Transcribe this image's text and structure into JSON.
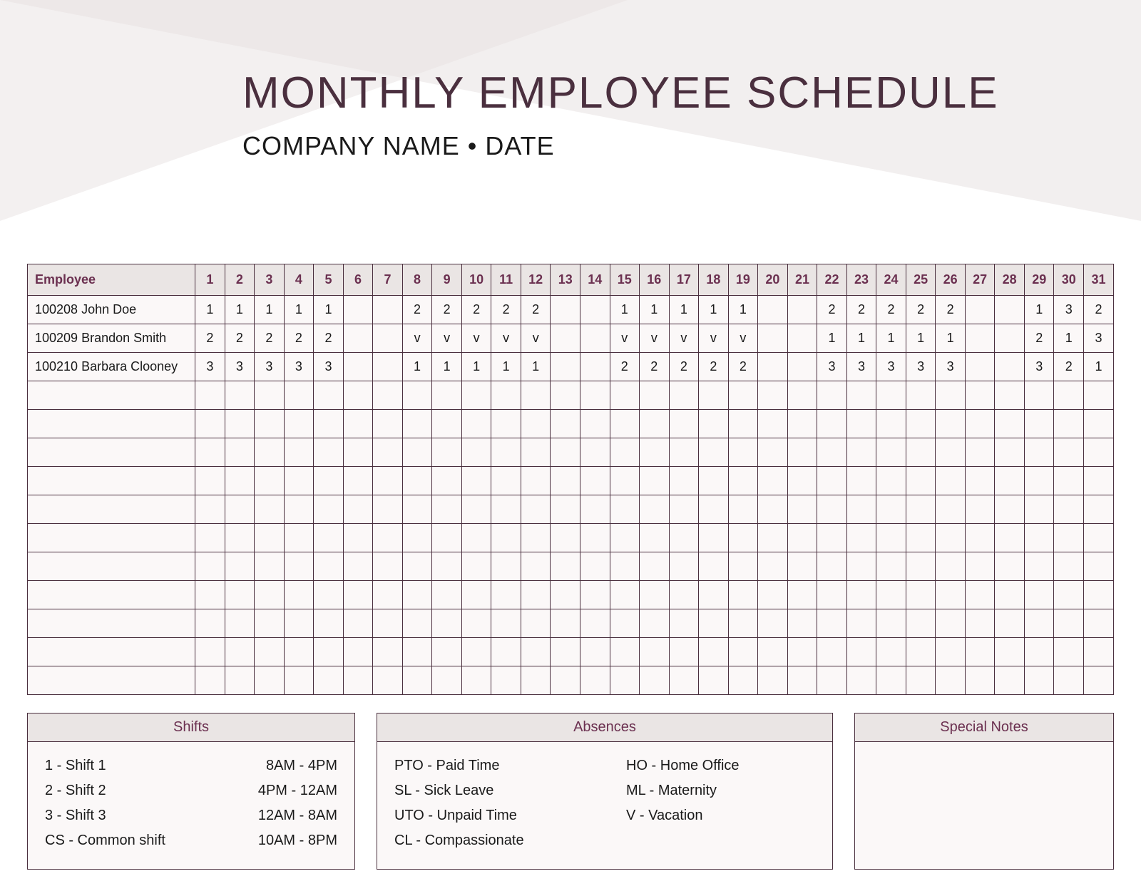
{
  "header": {
    "title": "MONTHLY EMPLOYEE SCHEDULE",
    "subtitle": "COMPANY NAME • DATE"
  },
  "colors": {
    "border": "#4a2f3e",
    "header_bg": "#eae5e4",
    "header_text": "#6b3050",
    "cell_bg": "#fbf8f8",
    "text": "#1a1a1a",
    "page_bg": "#ffffff"
  },
  "schedule": {
    "employee_header": "Employee",
    "days": [
      "1",
      "2",
      "3",
      "4",
      "5",
      "6",
      "7",
      "8",
      "9",
      "10",
      "11",
      "12",
      "13",
      "14",
      "15",
      "16",
      "17",
      "18",
      "19",
      "20",
      "21",
      "22",
      "23",
      "24",
      "25",
      "26",
      "27",
      "28",
      "29",
      "30",
      "31"
    ],
    "rows": [
      {
        "name": "100208 John Doe",
        "cells": [
          "1",
          "1",
          "1",
          "1",
          "1",
          "",
          "",
          "2",
          "2",
          "2",
          "2",
          "2",
          "",
          "",
          "1",
          "1",
          "1",
          "1",
          "1",
          "",
          "",
          "2",
          "2",
          "2",
          "2",
          "2",
          "",
          "",
          "1",
          "3",
          "2"
        ]
      },
      {
        "name": "100209 Brandon Smith",
        "cells": [
          "2",
          "2",
          "2",
          "2",
          "2",
          "",
          "",
          "v",
          "v",
          "v",
          "v",
          "v",
          "",
          "",
          "v",
          "v",
          "v",
          "v",
          "v",
          "",
          "",
          "1",
          "1",
          "1",
          "1",
          "1",
          "",
          "",
          "2",
          "1",
          "3"
        ]
      },
      {
        "name": "100210 Barbara Clooney",
        "cells": [
          "3",
          "3",
          "3",
          "3",
          "3",
          "",
          "",
          "1",
          "1",
          "1",
          "1",
          "1",
          "",
          "",
          "2",
          "2",
          "2",
          "2",
          "2",
          "",
          "",
          "3",
          "3",
          "3",
          "3",
          "3",
          "",
          "",
          "3",
          "2",
          "1"
        ]
      }
    ],
    "empty_rows": 11
  },
  "legend": {
    "shifts": {
      "title": "Shifts",
      "items": [
        {
          "label": "1 - Shift 1",
          "time": "8AM - 4PM"
        },
        {
          "label": "2 - Shift 2",
          "time": "4PM - 12AM"
        },
        {
          "label": "3 - Shift 3",
          "time": "12AM - 8AM"
        },
        {
          "label": "CS - Common shift",
          "time": "10AM - 8PM"
        }
      ]
    },
    "absences": {
      "title": "Absences",
      "col1": [
        "PTO - Paid Time",
        "SL - Sick Leave",
        "UTO - Unpaid Time",
        "CL - Compassionate"
      ],
      "col2": [
        "HO - Home Office",
        "ML - Maternity",
        "V - Vacation"
      ]
    },
    "notes": {
      "title": "Special Notes",
      "content": ""
    }
  }
}
